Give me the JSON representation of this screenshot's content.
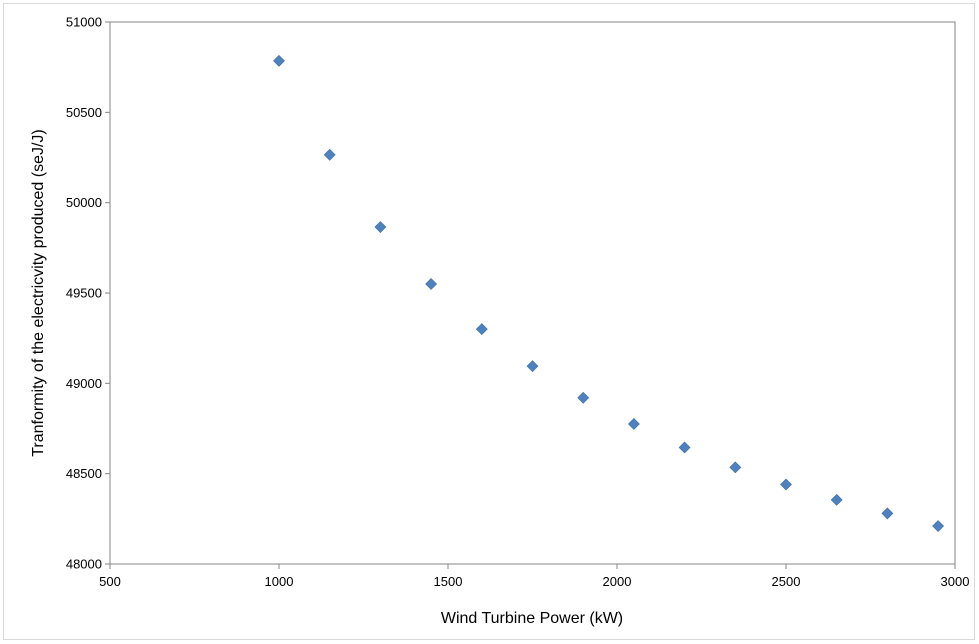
{
  "chart_data": {
    "type": "scatter",
    "title": "",
    "xlabel": "Wind Turbine Power (kW)",
    "ylabel": "Tranformity of the electricvity produced (seJ/J)",
    "xlim": [
      500,
      3000
    ],
    "ylim": [
      48000,
      51000
    ],
    "xticks": [
      500,
      1000,
      1500,
      2000,
      2500,
      3000
    ],
    "yticks": [
      48000,
      48500,
      49000,
      49500,
      50000,
      50500,
      51000
    ],
    "grid": false,
    "legend": "none",
    "marker": "diamond",
    "marker_color": "#4f81bd",
    "x": [
      1000,
      1150,
      1300,
      1450,
      1600,
      1750,
      1900,
      2050,
      2200,
      2350,
      2500,
      2650,
      2800,
      2950
    ],
    "y": [
      50785,
      50265,
      49865,
      49550,
      49300,
      49095,
      48920,
      48775,
      48645,
      48535,
      48440,
      48355,
      48280,
      48210
    ]
  }
}
